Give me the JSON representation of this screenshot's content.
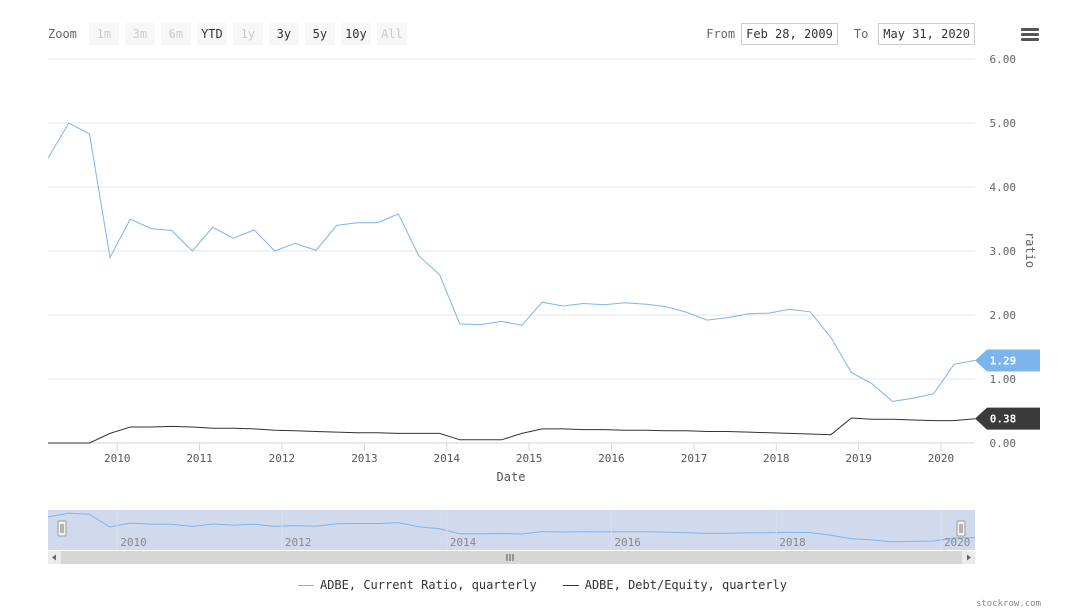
{
  "toolbar": {
    "zoom_label": "Zoom",
    "buttons": [
      {
        "label": "1m",
        "enabled": false
      },
      {
        "label": "3m",
        "enabled": false
      },
      {
        "label": "6m",
        "enabled": false
      },
      {
        "label": "YTD",
        "enabled": true
      },
      {
        "label": "1y",
        "enabled": false
      },
      {
        "label": "3y",
        "enabled": true
      },
      {
        "label": "5y",
        "enabled": true
      },
      {
        "label": "10y",
        "enabled": true
      },
      {
        "label": "All",
        "enabled": false
      }
    ],
    "from_label": "From",
    "from_value": "Feb 28, 2009",
    "to_label": "To",
    "to_value": "May 31, 2020",
    "menu_icon": "hamburger-menu-icon"
  },
  "chart_data": {
    "type": "line",
    "xlabel": "Date",
    "ylabel": "ratio",
    "ylim": [
      0,
      6
    ],
    "yticks": [
      "0.00",
      "1.00",
      "2.00",
      "3.00",
      "4.00",
      "5.00",
      "6.00"
    ],
    "xticks": [
      "2010",
      "2011",
      "2012",
      "2013",
      "2014",
      "2015",
      "2016",
      "2017",
      "2018",
      "2019",
      "2020"
    ],
    "xlim": [
      "2009-02-28",
      "2020-05-31"
    ],
    "grid": true,
    "legend_position": "bottom",
    "series": [
      {
        "name": "ADBE, Current Ratio, quarterly",
        "color": "#7cb5ec",
        "last_value_label": "1.29",
        "points": [
          [
            "2009-02-28",
            4.45
          ],
          [
            "2009-05-31",
            5.0
          ],
          [
            "2009-08-31",
            4.83
          ],
          [
            "2009-11-30",
            2.9
          ],
          [
            "2010-02-28",
            3.5
          ],
          [
            "2010-05-31",
            3.35
          ],
          [
            "2010-08-31",
            3.32
          ],
          [
            "2010-11-30",
            3.0
          ],
          [
            "2011-02-28",
            3.37
          ],
          [
            "2011-05-31",
            3.2
          ],
          [
            "2011-08-31",
            3.33
          ],
          [
            "2011-11-30",
            3.0
          ],
          [
            "2012-02-28",
            3.12
          ],
          [
            "2012-05-31",
            3.01
          ],
          [
            "2012-08-31",
            3.4
          ],
          [
            "2012-11-30",
            3.44
          ],
          [
            "2013-02-28",
            3.44
          ],
          [
            "2013-05-31",
            3.58
          ],
          [
            "2013-08-31",
            2.92
          ],
          [
            "2013-11-30",
            2.63
          ],
          [
            "2014-02-28",
            1.86
          ],
          [
            "2014-05-31",
            1.85
          ],
          [
            "2014-08-31",
            1.9
          ],
          [
            "2014-11-30",
            1.84
          ],
          [
            "2015-02-28",
            2.2
          ],
          [
            "2015-05-31",
            2.14
          ],
          [
            "2015-08-31",
            2.18
          ],
          [
            "2015-11-30",
            2.16
          ],
          [
            "2016-02-28",
            2.19
          ],
          [
            "2016-05-31",
            2.17
          ],
          [
            "2016-08-31",
            2.13
          ],
          [
            "2016-11-30",
            2.04
          ],
          [
            "2017-02-28",
            1.92
          ],
          [
            "2017-05-31",
            1.96
          ],
          [
            "2017-08-31",
            2.02
          ],
          [
            "2017-11-30",
            2.03
          ],
          [
            "2018-02-28",
            2.09
          ],
          [
            "2018-05-31",
            2.05
          ],
          [
            "2018-08-31",
            1.65
          ],
          [
            "2018-11-30",
            1.1
          ],
          [
            "2019-02-28",
            0.93
          ],
          [
            "2019-05-31",
            0.65
          ],
          [
            "2019-08-31",
            0.7
          ],
          [
            "2019-11-30",
            0.77
          ],
          [
            "2020-02-28",
            1.23
          ],
          [
            "2020-05-31",
            1.29
          ]
        ]
      },
      {
        "name": "ADBE, Debt/Equity, quarterly",
        "color": "#333333",
        "last_value_label": "0.38",
        "points": [
          [
            "2009-02-28",
            0.0
          ],
          [
            "2009-05-31",
            0.0
          ],
          [
            "2009-08-31",
            0.0
          ],
          [
            "2009-11-30",
            0.15
          ],
          [
            "2010-02-28",
            0.25
          ],
          [
            "2010-05-31",
            0.25
          ],
          [
            "2010-08-31",
            0.26
          ],
          [
            "2010-11-30",
            0.25
          ],
          [
            "2011-02-28",
            0.23
          ],
          [
            "2011-05-31",
            0.23
          ],
          [
            "2011-08-31",
            0.22
          ],
          [
            "2011-11-30",
            0.2
          ],
          [
            "2012-02-28",
            0.19
          ],
          [
            "2012-05-31",
            0.18
          ],
          [
            "2012-08-31",
            0.17
          ],
          [
            "2012-11-30",
            0.16
          ],
          [
            "2013-02-28",
            0.16
          ],
          [
            "2013-05-31",
            0.15
          ],
          [
            "2013-08-31",
            0.15
          ],
          [
            "2013-11-30",
            0.15
          ],
          [
            "2014-02-28",
            0.05
          ],
          [
            "2014-05-31",
            0.05
          ],
          [
            "2014-08-31",
            0.05
          ],
          [
            "2014-11-30",
            0.15
          ],
          [
            "2015-02-28",
            0.22
          ],
          [
            "2015-05-31",
            0.22
          ],
          [
            "2015-08-31",
            0.21
          ],
          [
            "2015-11-30",
            0.21
          ],
          [
            "2016-02-28",
            0.2
          ],
          [
            "2016-05-31",
            0.2
          ],
          [
            "2016-08-31",
            0.19
          ],
          [
            "2016-11-30",
            0.19
          ],
          [
            "2017-02-28",
            0.18
          ],
          [
            "2017-05-31",
            0.18
          ],
          [
            "2017-08-31",
            0.17
          ],
          [
            "2017-11-30",
            0.16
          ],
          [
            "2018-02-28",
            0.15
          ],
          [
            "2018-05-31",
            0.14
          ],
          [
            "2018-08-31",
            0.13
          ],
          [
            "2018-11-30",
            0.39
          ],
          [
            "2019-02-28",
            0.37
          ],
          [
            "2019-05-31",
            0.37
          ],
          [
            "2019-08-31",
            0.36
          ],
          [
            "2019-11-30",
            0.35
          ],
          [
            "2020-02-28",
            0.35
          ],
          [
            "2020-05-31",
            0.38
          ]
        ]
      }
    ],
    "navigator": {
      "xticks": [
        "2010",
        "2012",
        "2014",
        "2016",
        "2018",
        "2020"
      ],
      "selection": [
        "2009-02-28",
        "2020-05-31"
      ]
    }
  },
  "credit": "stockrow.com",
  "colors": {
    "current_ratio": "#7cb5ec",
    "debt_equity": "#333333",
    "navigator_fill": "#ccd6eb"
  }
}
